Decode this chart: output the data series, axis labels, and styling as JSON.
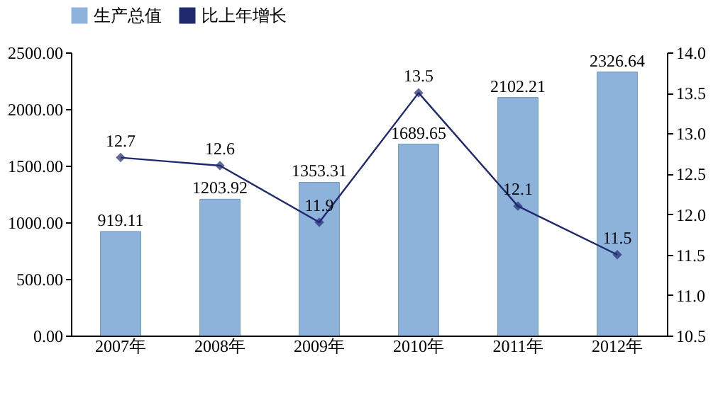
{
  "chart_data": {
    "type": "bar",
    "categories": [
      "2007年",
      "2008年",
      "2009年",
      "2010年",
      "2011年",
      "2012年"
    ],
    "series": [
      {
        "name": "生产总值",
        "color": "#8db3db",
        "values": [
          919.11,
          1203.92,
          1353.31,
          1689.65,
          2102.21,
          2326.64
        ]
      },
      {
        "name": "比上年增长",
        "type": "line",
        "axis": "y2",
        "color": "#1f2a6e",
        "values": [
          12.7,
          12.6,
          11.9,
          13.5,
          12.1,
          11.5
        ]
      }
    ],
    "ylim": [
      0,
      2500
    ],
    "yticks": [
      {
        "value": 0,
        "label": "0.00"
      },
      {
        "value": 500,
        "label": "500.00"
      },
      {
        "value": 1000,
        "label": "1000.00"
      },
      {
        "value": 1500,
        "label": "1500.00"
      },
      {
        "value": 2000,
        "label": "2000.00"
      },
      {
        "value": 2500,
        "label": "2500.00"
      }
    ],
    "y2lim": [
      10.5,
      14
    ],
    "y2ticks": [
      10.5,
      {
        "value": 11,
        "label": "11.0"
      },
      11.5,
      {
        "value": 12,
        "label": "12.0"
      },
      12.5,
      {
        "value": 13,
        "label": "13.0"
      },
      13.5,
      {
        "value": 14,
        "label": "14.0"
      }
    ],
    "data_labels": true,
    "legend": "top",
    "marker": "diamond",
    "line_style": "solid",
    "grid": false
  }
}
